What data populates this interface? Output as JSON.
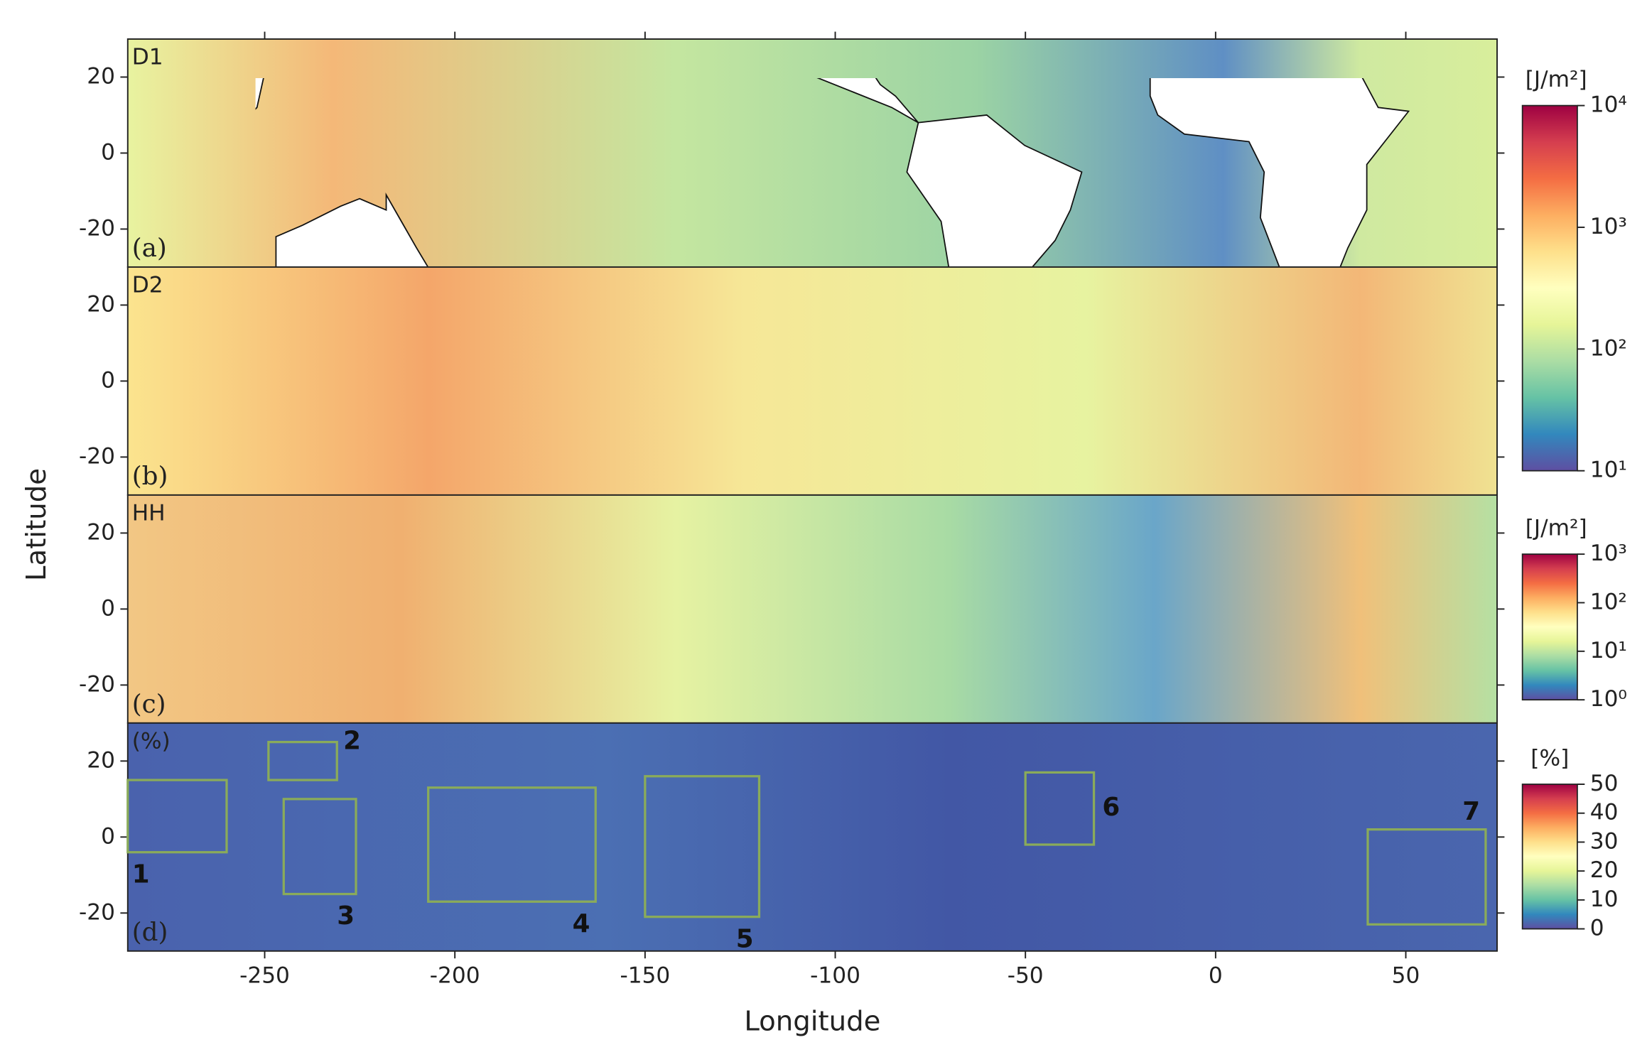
{
  "figure": {
    "ylabel": "Latitude"
  },
  "chart_data": [
    {
      "type": "heatmap",
      "panel_label": "D1",
      "letter": "(a)",
      "xlim": [
        -286,
        74
      ],
      "ylim": [
        -30,
        30
      ],
      "yticks": [
        -20,
        0,
        20
      ],
      "colorbar": {
        "unit": "[J/m²]",
        "log": true,
        "lim": [
          10,
          10000
        ],
        "ticks": [
          {
            "value": 10,
            "label": "10¹"
          },
          {
            "value": 100,
            "label": "10²"
          },
          {
            "value": 1000,
            "label": "10³"
          },
          {
            "value": 10000,
            "label": "10⁴"
          }
        ],
        "colors": [
          "#5e4fa2",
          "#3288bd",
          "#66c2a5",
          "#abdda4",
          "#e6f598",
          "#ffffbf",
          "#fee08b",
          "#fdae61",
          "#f46d43",
          "#d53e4f",
          "#9e0142"
        ]
      }
    },
    {
      "type": "heatmap",
      "panel_label": "D2",
      "letter": "(b)",
      "xlim": [
        -286,
        74
      ],
      "ylim": [
        -30,
        30
      ],
      "yticks": [
        -20,
        0,
        20
      ]
    },
    {
      "type": "heatmap",
      "panel_label": "HH",
      "letter": "(c)",
      "xlim": [
        -286,
        74
      ],
      "ylim": [
        -30,
        30
      ],
      "yticks": [
        -20,
        0,
        20
      ],
      "colorbar": {
        "unit": "[J/m²]",
        "log": true,
        "lim": [
          1,
          1000
        ],
        "ticks": [
          {
            "value": 1,
            "label": "10⁰"
          },
          {
            "value": 10,
            "label": "10¹"
          },
          {
            "value": 100,
            "label": "10²"
          },
          {
            "value": 1000,
            "label": "10³"
          }
        ],
        "colors": [
          "#5e4fa2",
          "#3288bd",
          "#66c2a5",
          "#abdda4",
          "#e6f598",
          "#ffffbf",
          "#fee08b",
          "#fdae61",
          "#f46d43",
          "#d53e4f",
          "#9e0142"
        ]
      }
    },
    {
      "type": "heatmap",
      "panel_label": "(%)",
      "letter": "(d)",
      "xlim": [
        -286,
        74
      ],
      "ylim": [
        -30,
        30
      ],
      "yticks": [
        -20,
        0,
        20
      ],
      "xticks": [
        -250,
        -200,
        -150,
        -100,
        -50,
        0,
        50
      ],
      "xlabel": "Longitude",
      "colorbar": {
        "unit": "[%]",
        "log": false,
        "lim": [
          0,
          50
        ],
        "ticks": [
          0,
          10,
          20,
          30,
          40,
          50
        ],
        "colors": [
          "#5e4fa2",
          "#3288bd",
          "#66c2a5",
          "#abdda4",
          "#e6f598",
          "#ffffbf",
          "#fee08b",
          "#fdae61",
          "#f46d43",
          "#d53e4f",
          "#9e0142"
        ]
      },
      "boxes": [
        {
          "label": "1",
          "lon": [
            -286,
            -260
          ],
          "lat": [
            -4,
            15
          ]
        },
        {
          "label": "2",
          "lon": [
            -249,
            -231
          ],
          "lat": [
            15,
            25
          ]
        },
        {
          "label": "3",
          "lon": [
            -245,
            -226
          ],
          "lat": [
            -15,
            10
          ]
        },
        {
          "label": "4",
          "lon": [
            -207,
            -163
          ],
          "lat": [
            -17,
            13
          ]
        },
        {
          "label": "5",
          "lon": [
            -150,
            -120
          ],
          "lat": [
            -21,
            16
          ]
        },
        {
          "label": "6",
          "lon": [
            -50,
            -32
          ],
          "lat": [
            -2,
            17
          ]
        },
        {
          "label": "7",
          "lon": [
            40,
            71
          ],
          "lat": [
            -23,
            2
          ]
        }
      ]
    }
  ]
}
